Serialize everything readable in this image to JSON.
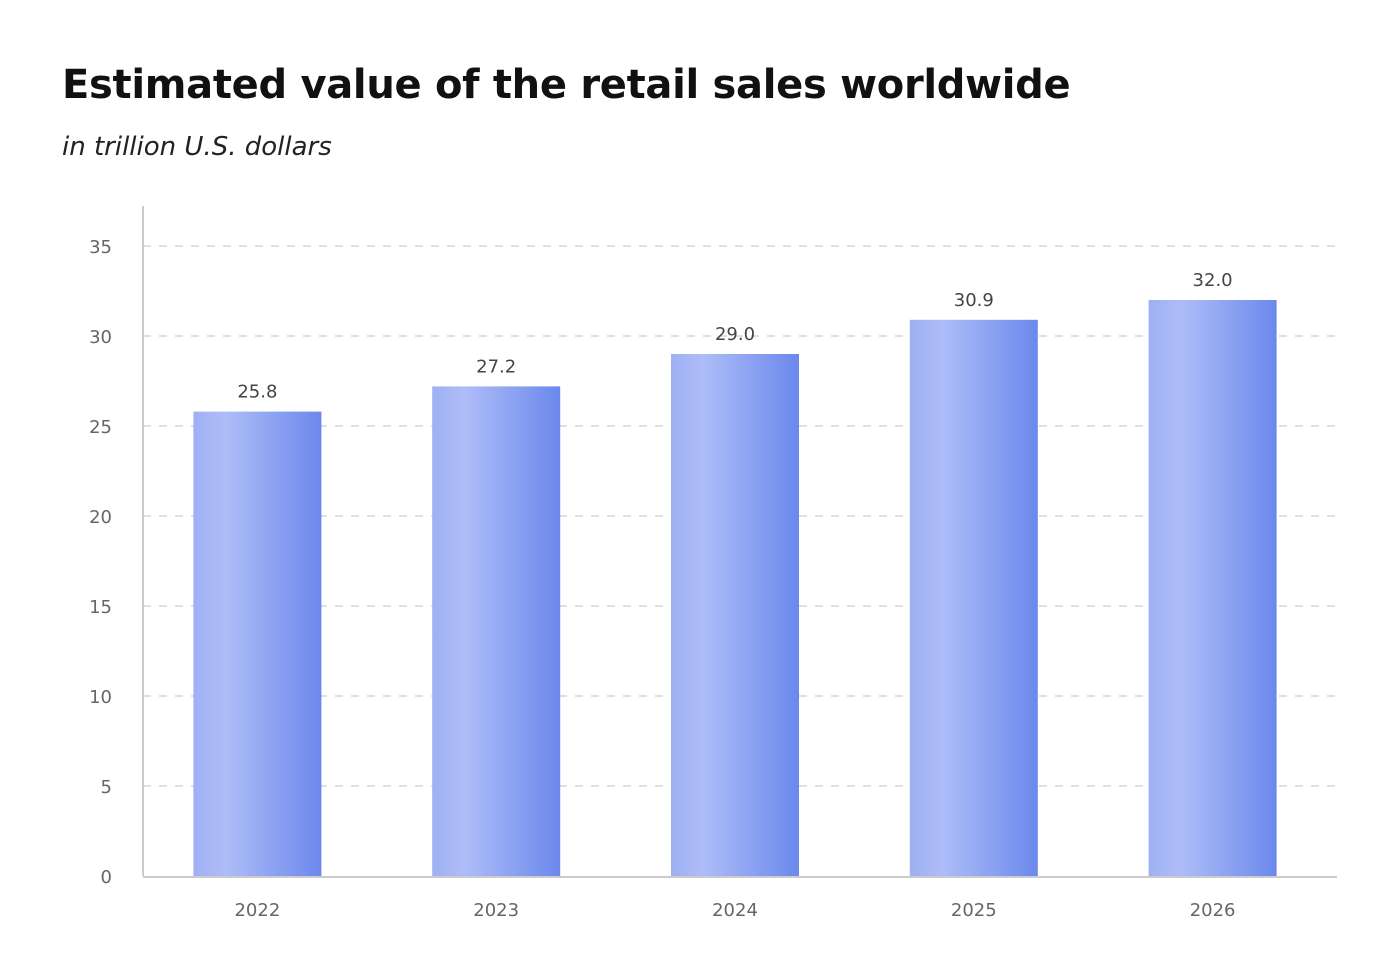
{
  "chart_data": {
    "type": "bar",
    "title": "Estimated value of the retail sales worldwide",
    "subtitle": "in trillion U.S. dollars",
    "categories": [
      "2022",
      "2023",
      "2024",
      "2025",
      "2026"
    ],
    "values": [
      25.8,
      27.2,
      29.0,
      30.9,
      32.0
    ],
    "value_labels": [
      "25.8",
      "27.2",
      "29.0",
      "30.9",
      "32.0"
    ],
    "xlabel": "",
    "ylabel": "",
    "ylim": [
      0,
      35
    ],
    "yticks": [
      0,
      5,
      10,
      15,
      20,
      25,
      30,
      35
    ],
    "grid": true,
    "legend": "none",
    "colors": {
      "bar_light": "#aebdf8",
      "bar_dark": "#6b88ec",
      "grid": "#d6d6d6",
      "axis": "#cccccc"
    }
  }
}
